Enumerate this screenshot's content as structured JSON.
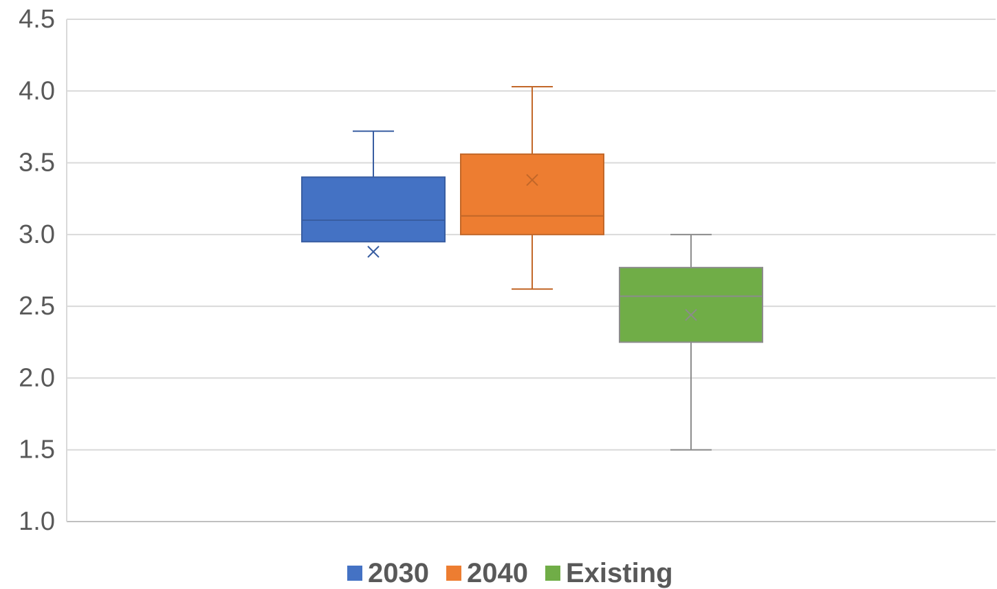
{
  "chart_data": {
    "type": "boxplot",
    "title": "",
    "xlabel": "",
    "ylabel": "",
    "ylim": [
      1.0,
      4.5
    ],
    "y_ticks": [
      "1.0",
      "1.5",
      "2.0",
      "2.5",
      "3.0",
      "3.5",
      "4.0",
      "4.5"
    ],
    "grid": true,
    "legend_position": "bottom",
    "series": [
      {
        "name": "2030",
        "color": "#4472C4",
        "min": 2.95,
        "q1": 2.95,
        "median": 3.1,
        "q3": 3.4,
        "max": 3.72,
        "mean": 2.88
      },
      {
        "name": "2040",
        "color": "#ED7D31",
        "min": 2.62,
        "q1": 3.0,
        "median": 3.13,
        "q3": 3.56,
        "max": 4.03,
        "mean": 3.38
      },
      {
        "name": "Existing",
        "color": "#70AD47",
        "min": 1.5,
        "q1": 2.25,
        "median": 2.57,
        "q3": 2.77,
        "max": 3.0,
        "mean": 2.44
      }
    ]
  }
}
